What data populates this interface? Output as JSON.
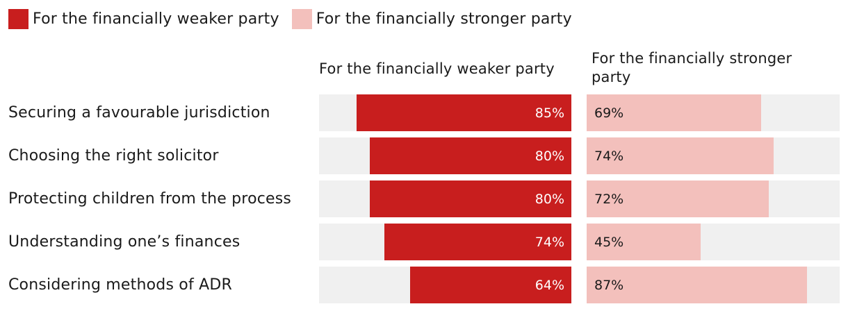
{
  "colors": {
    "weaker": "#c81e1e",
    "stronger": "#f3c0bc",
    "track": "#f0f0f0"
  },
  "legend": [
    {
      "label": "For the financially weaker party"
    },
    {
      "label": "For the financially stronger party"
    }
  ],
  "chart_data": {
    "type": "bar",
    "orientation": "horizontal",
    "title": "",
    "categories": [
      "Securing a favourable jurisdiction",
      "Choosing the right solicitor",
      "Protecting children from the process",
      "Understanding one’s finances",
      "Considering methods of ADR"
    ],
    "series": [
      {
        "name": "For the financially weaker party",
        "values": [
          85,
          80,
          80,
          74,
          64
        ],
        "labels": [
          "85%",
          "80%",
          "80%",
          "74%",
          "64%"
        ]
      },
      {
        "name": "For the financially stronger party",
        "values": [
          69,
          74,
          72,
          45,
          87
        ],
        "labels": [
          "69%",
          "74%",
          "72%",
          "45%",
          "87%"
        ]
      }
    ],
    "xlim": [
      0,
      100
    ],
    "unit": "%",
    "column_headers": [
      "For the financially weaker party",
      "For the financially stronger party"
    ]
  }
}
